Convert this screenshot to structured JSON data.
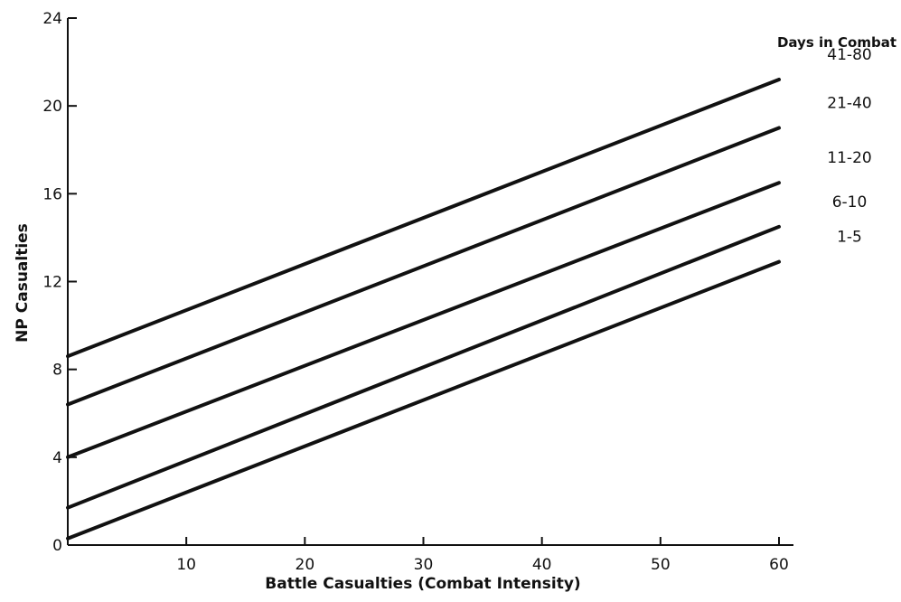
{
  "chart_data": {
    "type": "line",
    "xlabel": "Battle Casualties (Combat Intensity)",
    "ylabel": "NP Casualties",
    "xlim": [
      0,
      60
    ],
    "ylim": [
      0,
      24
    ],
    "x_ticks": [
      10,
      20,
      30,
      40,
      50,
      60
    ],
    "y_ticks": [
      0,
      4,
      8,
      12,
      16,
      20,
      24
    ],
    "grid": false,
    "legend_title": "Days in Combat",
    "legend_placement": "right",
    "series": [
      {
        "name": "41-80",
        "x": [
          0,
          60
        ],
        "y": [
          8.6,
          21.2
        ]
      },
      {
        "name": "21-40",
        "x": [
          0,
          60
        ],
        "y": [
          6.4,
          19.0
        ]
      },
      {
        "name": "11-20",
        "x": [
          0,
          60
        ],
        "y": [
          4.0,
          16.5
        ]
      },
      {
        "name": "6-10",
        "x": [
          0,
          60
        ],
        "y": [
          1.7,
          14.5
        ]
      },
      {
        "name": "1-5",
        "x": [
          0,
          60
        ],
        "y": [
          0.3,
          12.9
        ]
      }
    ]
  }
}
